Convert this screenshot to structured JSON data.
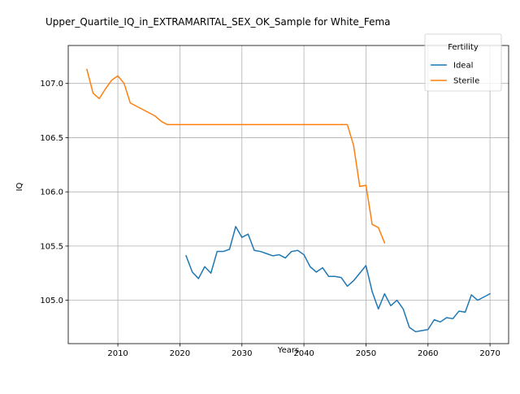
{
  "chart_data": {
    "type": "line",
    "title": "Upper_Quartile_IQ_in_EXTRAMARITAL_SEX_OK_Sample for White_Fema",
    "xlabel": "Years",
    "ylabel": "IQ",
    "xlim": [
      2002,
      2073
    ],
    "ylim": [
      104.6,
      107.35
    ],
    "xticks": [
      2010,
      2020,
      2030,
      2040,
      2050,
      2060,
      2070
    ],
    "xtick_labels": [
      "2010",
      "2020",
      "2030",
      "2040",
      "2050",
      "2060",
      "2070"
    ],
    "yticks": [
      105.0,
      105.5,
      106.0,
      106.5,
      107.0
    ],
    "ytick_labels": [
      "105.0",
      "105.5",
      "106.0",
      "106.5",
      "107.0"
    ],
    "grid": true,
    "legend": {
      "title": "Fertility",
      "placement": "top-right"
    },
    "series": [
      {
        "name": "Ideal",
        "color": "#1f77b4",
        "x": [
          2021,
          2022,
          2023,
          2024,
          2025,
          2026,
          2027,
          2028,
          2029,
          2030,
          2031,
          2032,
          2033,
          2034,
          2035,
          2036,
          2037,
          2038,
          2039,
          2040,
          2041,
          2042,
          2043,
          2044,
          2045,
          2046,
          2047,
          2048,
          2049,
          2050,
          2051,
          2052,
          2053,
          2054,
          2055,
          2056,
          2057,
          2058,
          2059,
          2060,
          2061,
          2062,
          2063,
          2064,
          2065,
          2066,
          2067,
          2068,
          2069,
          2070
        ],
        "y": [
          105.41,
          105.26,
          105.2,
          105.31,
          105.25,
          105.45,
          105.45,
          105.47,
          105.68,
          105.58,
          105.61,
          105.46,
          105.45,
          105.43,
          105.41,
          105.42,
          105.39,
          105.45,
          105.46,
          105.42,
          105.31,
          105.26,
          105.3,
          105.22,
          105.22,
          105.21,
          105.13,
          105.18,
          105.25,
          105.32,
          105.08,
          104.92,
          105.06,
          104.95,
          105.0,
          104.92,
          104.75,
          104.71,
          104.72,
          104.73,
          104.82,
          104.8,
          104.84,
          104.83,
          104.9,
          104.89,
          105.05,
          105.0,
          105.03,
          105.06
        ]
      },
      {
        "name": "Sterile",
        "color": "#ff7f0e",
        "x": [
          2005,
          2006,
          2007,
          2008,
          2009,
          2010,
          2011,
          2012,
          2013,
          2014,
          2015,
          2016,
          2017,
          2018,
          2019,
          2020,
          2021,
          2022,
          2023,
          2024,
          2025,
          2026,
          2027,
          2028,
          2029,
          2030,
          2031,
          2032,
          2033,
          2034,
          2035,
          2036,
          2037,
          2038,
          2039,
          2040,
          2041,
          2042,
          2043,
          2044,
          2045,
          2046,
          2047,
          2048,
          2049,
          2050,
          2051,
          2052,
          2053
        ],
        "y": [
          107.13,
          106.91,
          106.86,
          106.95,
          107.03,
          107.07,
          107.0,
          106.82,
          106.79,
          106.76,
          106.73,
          106.7,
          106.65,
          106.62,
          106.62,
          106.62,
          106.62,
          106.62,
          106.62,
          106.62,
          106.62,
          106.62,
          106.62,
          106.62,
          106.62,
          106.62,
          106.62,
          106.62,
          106.62,
          106.62,
          106.62,
          106.62,
          106.62,
          106.62,
          106.62,
          106.62,
          106.62,
          106.62,
          106.62,
          106.62,
          106.62,
          106.62,
          106.62,
          106.43,
          106.05,
          106.06,
          105.7,
          105.67,
          105.53
        ]
      }
    ]
  }
}
